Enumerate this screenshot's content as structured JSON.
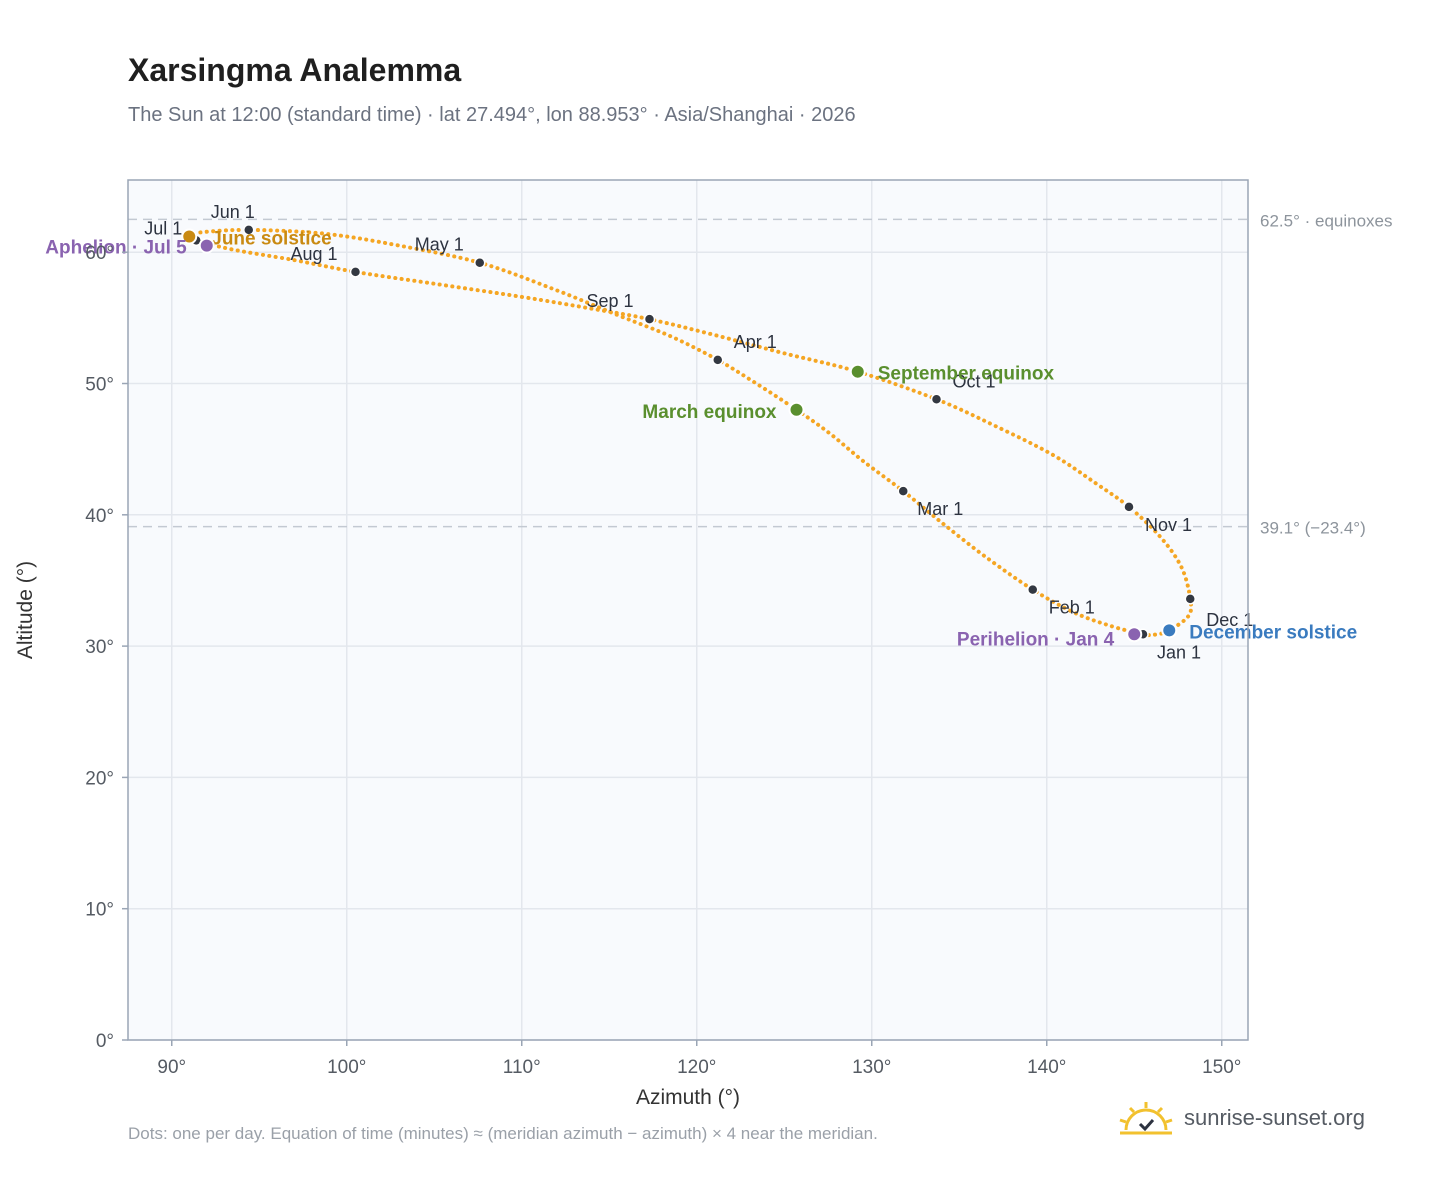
{
  "header": {
    "title": "Xarsingma Analemma",
    "subtitle": "The Sun at 12:00 (standard time) · lat 27.494°, lon 88.953° · Asia/Shanghai · 2026"
  },
  "footer": {
    "note": "Dots: one per day. Equation of time (minutes) ≈ (meridian azimuth − azimuth) × 4 near the meridian.",
    "brand": "sunrise-sunset.org"
  },
  "colors": {
    "curve": "#f5a623",
    "month_dot": "#333842",
    "equinox": "#5a8f2e",
    "june_solstice": "#c98a12",
    "december_solstice": "#3a7bbf",
    "apsis": "#8a63b0",
    "plot_bg": "#f8fafd",
    "grid": "#e3e7ed",
    "axis": "#9aa5b5"
  },
  "chart_data": {
    "type": "scatter",
    "xlabel": "Azimuth (°)",
    "ylabel": "Altitude (°)",
    "xlim": [
      87.5,
      151.5
    ],
    "ylim": [
      0,
      65.5
    ],
    "xticks": [
      90,
      100,
      110,
      120,
      130,
      140,
      150
    ],
    "yticks": [
      0,
      10,
      20,
      30,
      40,
      50,
      60
    ],
    "x_tick_labels": [
      "90°",
      "100°",
      "110°",
      "120°",
      "130°",
      "140°",
      "150°"
    ],
    "y_tick_labels": [
      "0°",
      "10°",
      "20°",
      "30°",
      "40°",
      "50°",
      "60°"
    ],
    "grid": true,
    "reference_lines": [
      {
        "y": 62.5,
        "label": "62.5° · equinoxes"
      },
      {
        "y": 39.1,
        "label": "39.1° (−23.4°)"
      }
    ],
    "month_points": [
      {
        "label": "Jan 1",
        "az": 145.5,
        "alt": 30.9
      },
      {
        "label": "Feb 1",
        "az": 139.2,
        "alt": 34.3
      },
      {
        "label": "Mar 1",
        "az": 131.8,
        "alt": 41.8
      },
      {
        "label": "Apr 1",
        "az": 121.2,
        "alt": 51.8
      },
      {
        "label": "May 1",
        "az": 107.6,
        "alt": 59.2
      },
      {
        "label": "Jun 1",
        "az": 94.4,
        "alt": 61.7
      },
      {
        "label": "Jul 1",
        "az": 91.4,
        "alt": 60.9
      },
      {
        "label": "Aug 1",
        "az": 100.5,
        "alt": 58.5
      },
      {
        "label": "Sep 1",
        "az": 117.3,
        "alt": 54.9
      },
      {
        "label": "Oct 1",
        "az": 133.7,
        "alt": 48.8
      },
      {
        "label": "Nov 1",
        "az": 144.7,
        "alt": 40.6
      },
      {
        "label": "Dec 1",
        "az": 148.2,
        "alt": 33.6
      }
    ],
    "events": [
      {
        "label": "March equinox",
        "az": 125.7,
        "alt": 48.0,
        "kind": "equinox"
      },
      {
        "label": "September equinox",
        "az": 129.2,
        "alt": 50.9,
        "kind": "equinox"
      },
      {
        "label": "June solstice",
        "az": 91.0,
        "alt": 61.2,
        "kind": "june_solstice"
      },
      {
        "label": "December solstice",
        "az": 147.0,
        "alt": 31.2,
        "kind": "december_solstice"
      },
      {
        "label": "Perihelion · Jan 4",
        "az": 145.0,
        "alt": 30.9,
        "kind": "apsis"
      },
      {
        "label": "Aphelion · Jul 5",
        "az": 92.0,
        "alt": 60.5,
        "kind": "apsis"
      }
    ],
    "daily_curve": [
      [
        145.5,
        30.9
      ],
      [
        143.5,
        31.6
      ],
      [
        141.5,
        32.6
      ],
      [
        139.2,
        34.3
      ],
      [
        136.5,
        36.8
      ],
      [
        134.0,
        39.4
      ],
      [
        131.8,
        41.8
      ],
      [
        129.5,
        44.1
      ],
      [
        127.6,
        46.2
      ],
      [
        125.7,
        48.0
      ],
      [
        123.4,
        50.0
      ],
      [
        121.2,
        51.8
      ],
      [
        118.5,
        53.6
      ],
      [
        115.5,
        55.2
      ],
      [
        111.8,
        57.2
      ],
      [
        107.6,
        59.2
      ],
      [
        103.0,
        60.5
      ],
      [
        98.8,
        61.4
      ],
      [
        94.4,
        61.7
      ],
      [
        91.6,
        61.5
      ],
      [
        91.0,
        61.2
      ],
      [
        91.4,
        60.9
      ],
      [
        93.5,
        60.2
      ],
      [
        97.0,
        59.4
      ],
      [
        100.5,
        58.5
      ],
      [
        105.0,
        57.6
      ],
      [
        110.0,
        56.6
      ],
      [
        114.0,
        55.7
      ],
      [
        117.3,
        54.9
      ],
      [
        121.0,
        53.7
      ],
      [
        125.0,
        52.3
      ],
      [
        129.2,
        50.9
      ],
      [
        133.7,
        48.8
      ],
      [
        137.0,
        46.8
      ],
      [
        140.3,
        44.6
      ],
      [
        142.8,
        42.4
      ],
      [
        144.7,
        40.6
      ],
      [
        146.5,
        38.3
      ],
      [
        147.7,
        36.0
      ],
      [
        148.2,
        33.6
      ],
      [
        148.1,
        32.3
      ],
      [
        147.0,
        31.2
      ],
      [
        146.3,
        30.9
      ],
      [
        145.5,
        30.9
      ]
    ]
  }
}
